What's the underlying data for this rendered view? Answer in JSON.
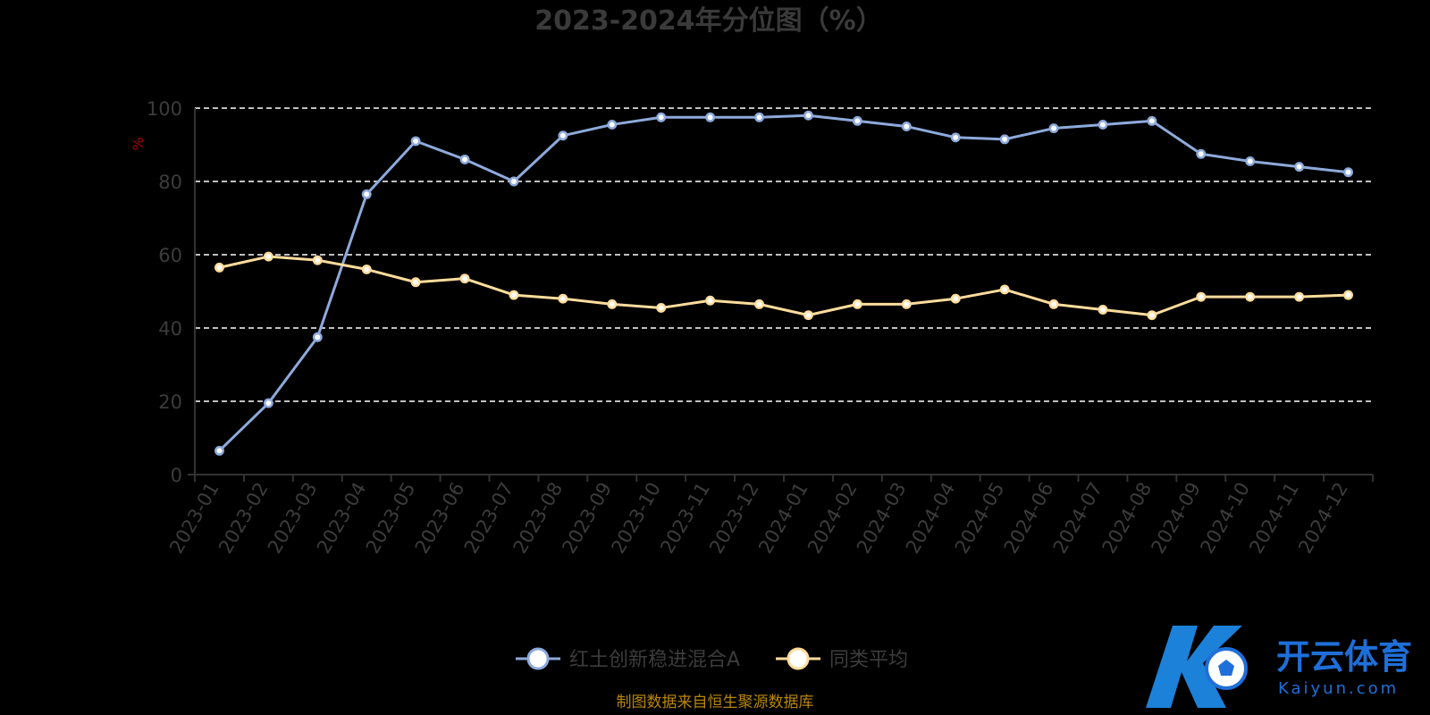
{
  "chart_data": {
    "type": "line",
    "title": "2023-2024年分位图（%）",
    "ylabel": "%",
    "xlabel": "",
    "ylim": [
      0,
      100
    ],
    "yticks": [
      0,
      20,
      40,
      60,
      80,
      100
    ],
    "grid": true,
    "legend_position": "bottom-center",
    "categories": [
      "2023-01",
      "2023-02",
      "2023-03",
      "2023-04",
      "2023-05",
      "2023-06",
      "2023-07",
      "2023-08",
      "2023-09",
      "2023-10",
      "2023-11",
      "2023-12",
      "2024-01",
      "2024-02",
      "2024-03",
      "2024-04",
      "2024-05",
      "2024-06",
      "2024-07",
      "2024-08",
      "2024-09",
      "2024-10",
      "2024-11",
      "2024-12"
    ],
    "series": [
      {
        "name": "红土创新稳进混合A",
        "color": "#8eaadb",
        "values": [
          6.5,
          19.5,
          37.5,
          76.5,
          91.0,
          86.0,
          80.0,
          92.5,
          95.5,
          97.5,
          97.5,
          97.5,
          98.0,
          96.5,
          95.0,
          92.0,
          91.5,
          94.5,
          95.5,
          96.5,
          87.5,
          85.5,
          84.0,
          82.5
        ]
      },
      {
        "name": "同类平均",
        "color": "#ffdc9c",
        "values": [
          56.5,
          59.5,
          58.5,
          56.0,
          52.5,
          53.5,
          49.0,
          48.0,
          46.5,
          45.5,
          47.5,
          46.5,
          43.5,
          46.5,
          46.5,
          48.0,
          50.5,
          46.5,
          45.0,
          43.5,
          48.5,
          48.5,
          48.5,
          49.0
        ]
      }
    ]
  },
  "footer": {
    "source_note": "制图数据来自恒生聚源数据库"
  },
  "watermark": {
    "brand_cn": "开云体育",
    "brand_en": "Kaiyun.com",
    "icon": "soccer-ball-logo-icon",
    "color": "#1e6fd9"
  }
}
